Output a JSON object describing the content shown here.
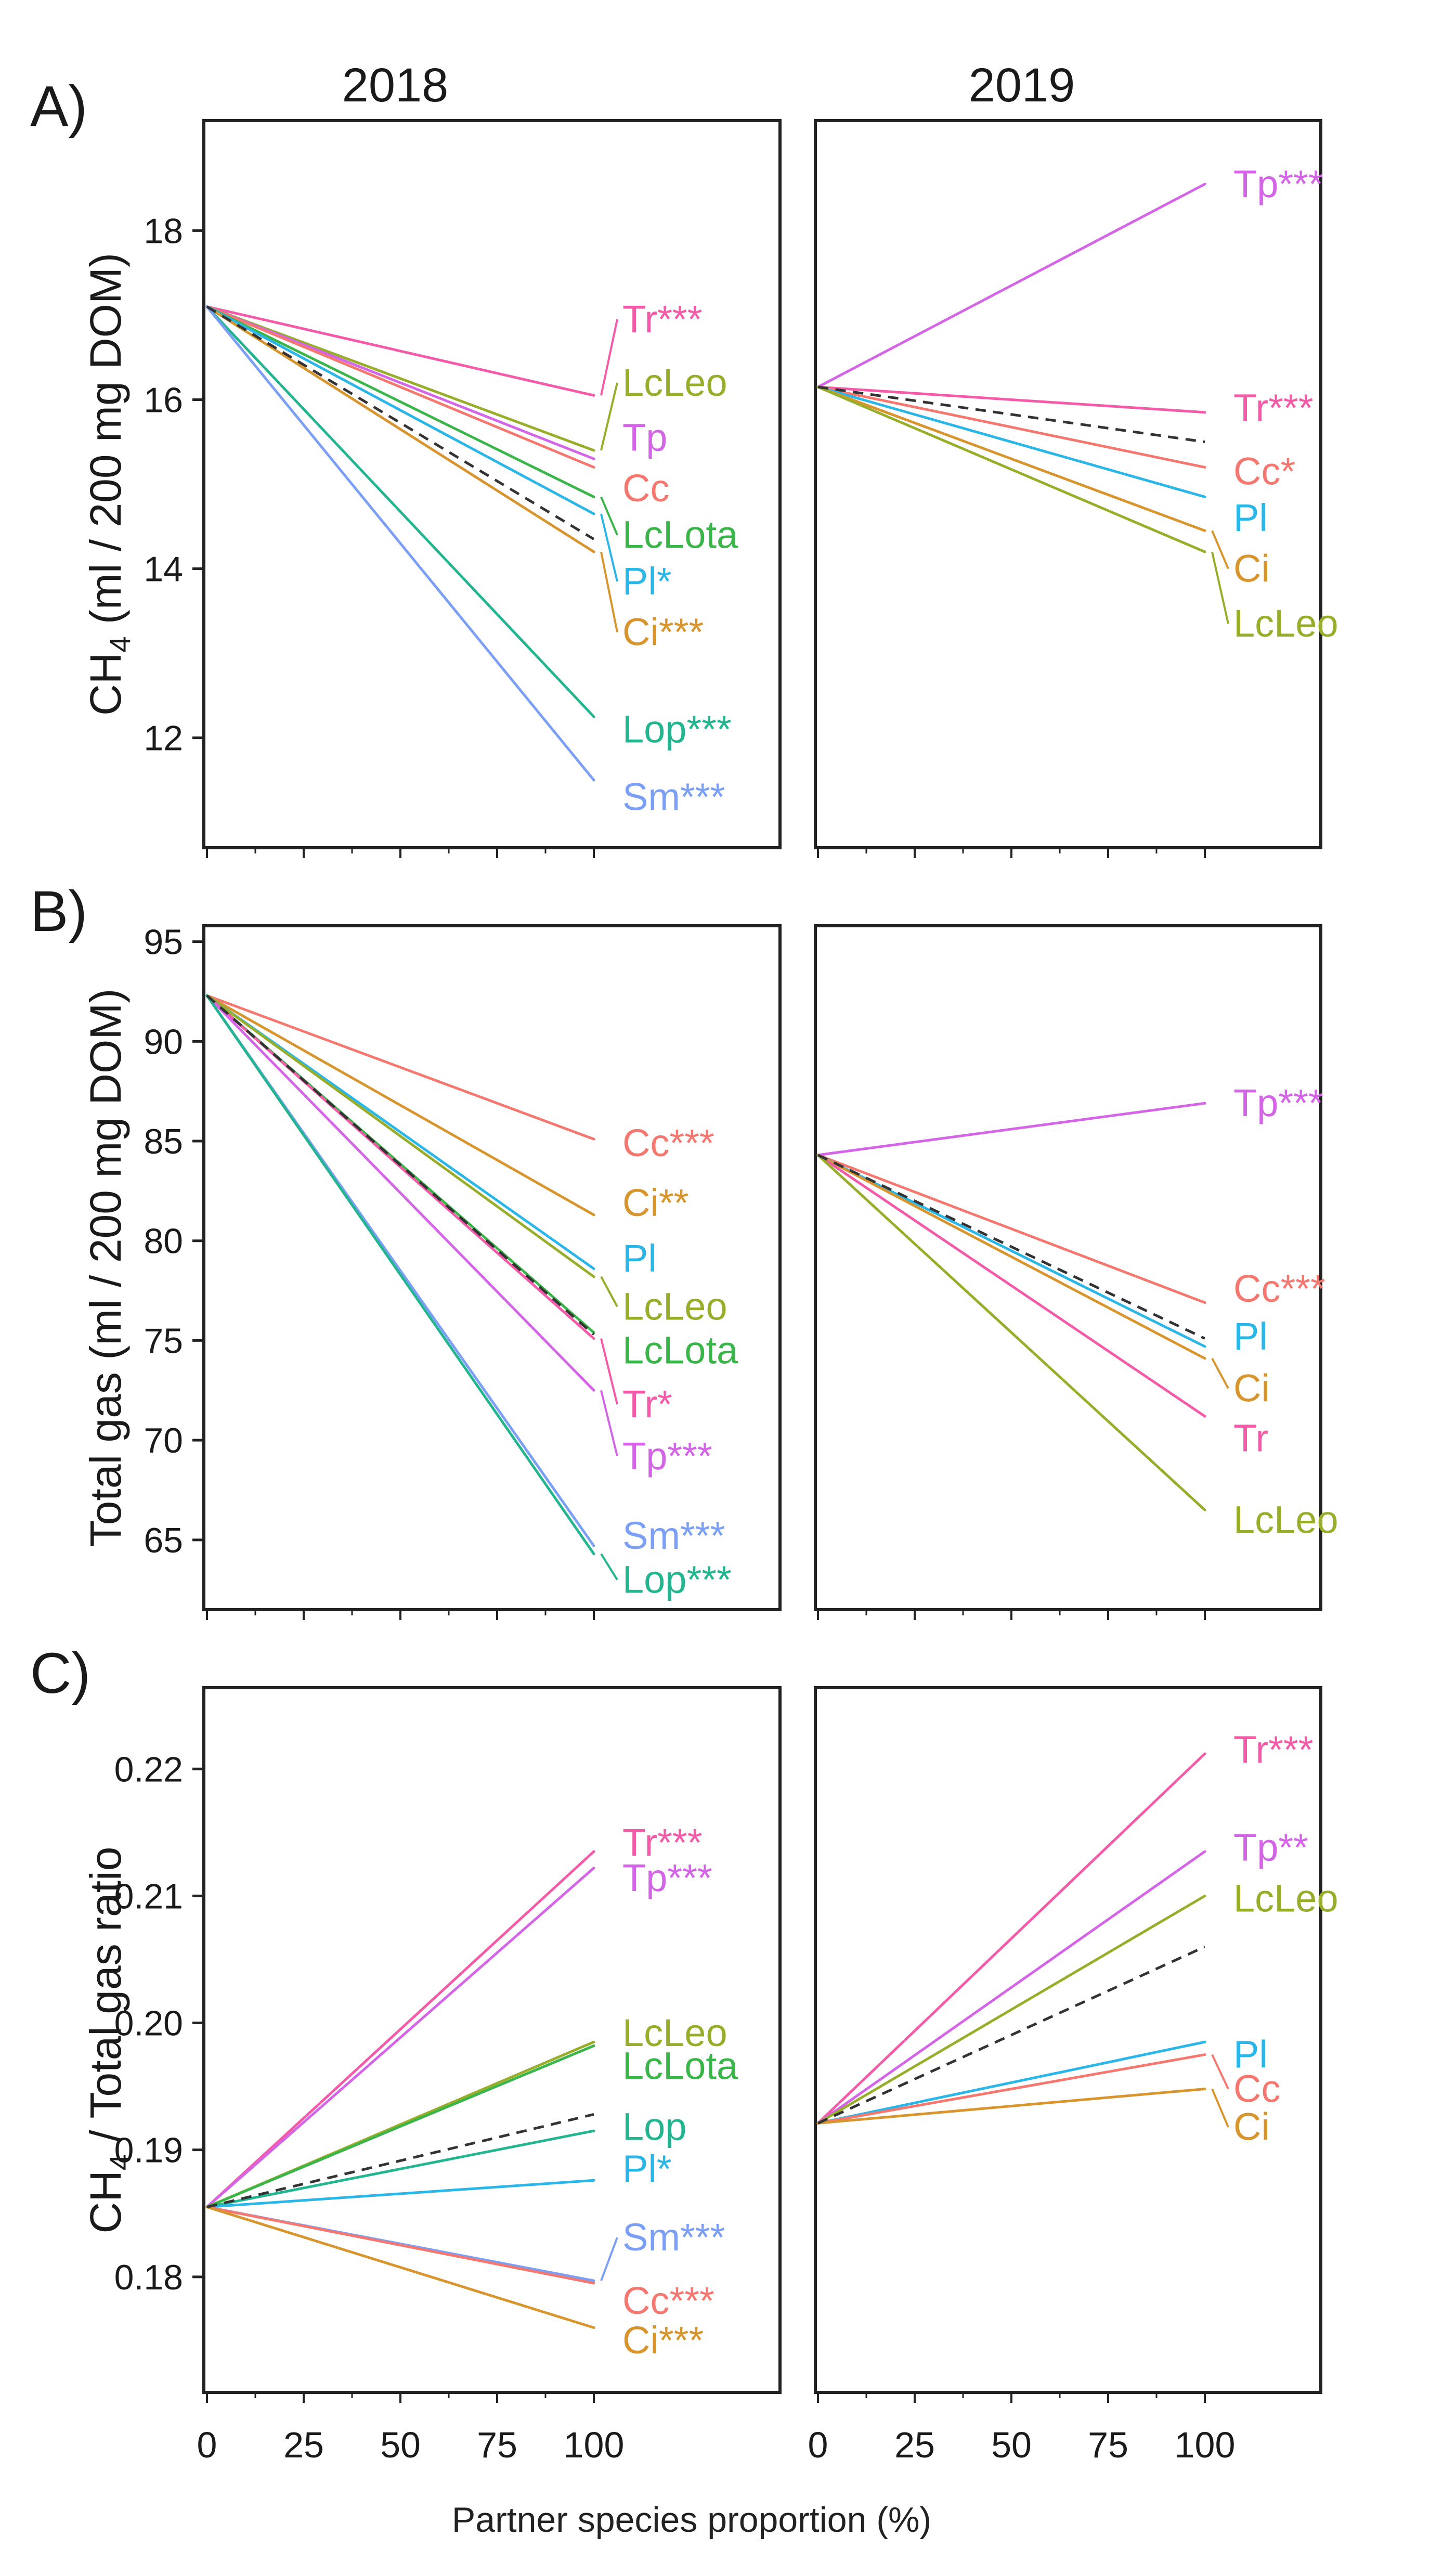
{
  "figure": {
    "x_axis_title": "Partner species proportion (%)",
    "year_labels": [
      "2018",
      "2019"
    ],
    "x_ticks": [
      0,
      25,
      50,
      75,
      100
    ]
  },
  "chart_data": [
    {
      "type": "line",
      "panel_label": "A)",
      "ylabel": "CH₄ (ml / 200 mg DOM)",
      "ylabel_main": "CH",
      "ylabel_sub": "4",
      "ylabel_rest": " (ml / 200 mg DOM)",
      "ylim": [
        10.7,
        19.3
      ],
      "yticks": [
        12,
        14,
        16,
        18
      ],
      "ytick_labels": [
        "12",
        "14",
        "16",
        "18"
      ],
      "xlim": [
        0,
        100
      ],
      "facets": [
        {
          "year": "2018",
          "start": 17.1,
          "reference_end": 14.35,
          "series": [
            {
              "name": "Tr***",
              "end": 16.05,
              "color": "#f35ba8",
              "label_y": 16.95
            },
            {
              "name": "LcLeo",
              "end": 15.4,
              "color": "#98ad2a",
              "label_y": 16.2
            },
            {
              "name": "Tp",
              "end": 15.3,
              "color": "#d465e6",
              "label_y": 15.55
            },
            {
              "name": "Cc",
              "end": 15.2,
              "color": "#f4786f",
              "label_y": 14.95
            },
            {
              "name": "LcLota",
              "end": 14.85,
              "color": "#3ab54a",
              "label_y": 14.4
            },
            {
              "name": "Pl*",
              "end": 14.65,
              "color": "#2bb6e8",
              "label_y": 13.85
            },
            {
              "name": "Ci***",
              "end": 14.2,
              "color": "#d9952d",
              "label_y": 13.25
            },
            {
              "name": "Lop***",
              "end": 12.25,
              "color": "#22b58f",
              "label_y": 12.1
            },
            {
              "name": "Sm***",
              "end": 11.5,
              "color": "#7b9ff4",
              "label_y": 11.3
            }
          ]
        },
        {
          "year": "2019",
          "start": 16.15,
          "reference_end": 15.5,
          "series": [
            {
              "name": "Tp***",
              "end": 18.55,
              "color": "#d465e6",
              "label_y": 18.55
            },
            {
              "name": "Tr***",
              "end": 15.85,
              "color": "#f35ba8",
              "label_y": 15.9
            },
            {
              "name": "Cc*",
              "end": 15.2,
              "color": "#f4786f",
              "label_y": 15.15
            },
            {
              "name": "Pl",
              "end": 14.85,
              "color": "#2bb6e8",
              "label_y": 14.6
            },
            {
              "name": "Ci",
              "end": 14.45,
              "color": "#d9952d",
              "label_y": 14.0
            },
            {
              "name": "LcLeo",
              "end": 14.2,
              "color": "#98ad2a",
              "label_y": 13.35
            }
          ]
        }
      ]
    },
    {
      "type": "line",
      "panel_label": "B)",
      "ylabel": "Total gas (ml / 200 mg DOM)",
      "ylim": [
        61.5,
        95.8
      ],
      "yticks": [
        65,
        70,
        75,
        80,
        85,
        90,
        95
      ],
      "ytick_labels": [
        "65",
        "70",
        "75",
        "80",
        "85",
        "90",
        "95"
      ],
      "xlim": [
        0,
        100
      ],
      "facets": [
        {
          "year": "2018",
          "start": 92.3,
          "reference_end": 75.3,
          "series": [
            {
              "name": "Cc***",
              "end": 85.1,
              "color": "#f4786f",
              "label_y": 84.9
            },
            {
              "name": "Ci**",
              "end": 81.3,
              "color": "#d9952d",
              "label_y": 81.9
            },
            {
              "name": "Pl",
              "end": 78.6,
              "color": "#2bb6e8",
              "label_y": 79.1
            },
            {
              "name": "LcLeo",
              "end": 78.2,
              "color": "#98ad2a",
              "label_y": 76.7
            },
            {
              "name": "LcLota",
              "end": 75.4,
              "color": "#3ab54a",
              "label_y": 74.5
            },
            {
              "name": "Tr*",
              "end": 75.1,
              "color": "#f35ba8",
              "label_y": 71.8
            },
            {
              "name": "Tp***",
              "end": 72.5,
              "color": "#d465e6",
              "label_y": 69.2
            },
            {
              "name": "Sm***",
              "end": 64.7,
              "color": "#7b9ff4",
              "label_y": 65.2
            },
            {
              "name": "Lop***",
              "end": 64.3,
              "color": "#22b58f",
              "label_y": 63.0
            }
          ]
        },
        {
          "year": "2019",
          "start": 84.3,
          "reference_end": 75.1,
          "series": [
            {
              "name": "Tp***",
              "end": 86.9,
              "color": "#d465e6",
              "label_y": 86.9
            },
            {
              "name": "Cc***",
              "end": 76.9,
              "color": "#f4786f",
              "label_y": 77.6
            },
            {
              "name": "Pl",
              "end": 74.7,
              "color": "#2bb6e8",
              "label_y": 75.2
            },
            {
              "name": "Ci",
              "end": 74.1,
              "color": "#d9952d",
              "label_y": 72.6
            },
            {
              "name": "Tr",
              "end": 71.2,
              "color": "#f35ba8",
              "label_y": 70.1
            },
            {
              "name": "LcLeo",
              "end": 66.5,
              "color": "#98ad2a",
              "label_y": 66.0
            }
          ]
        }
      ]
    },
    {
      "type": "line",
      "panel_label": "C)",
      "ylabel": "CH₄ / Total gas ratio",
      "ylabel_main": "CH",
      "ylabel_sub": "4",
      "ylabel_rest": " / Total gas ratio",
      "ylim": [
        0.1709,
        0.2264
      ],
      "yticks": [
        0.18,
        0.19,
        0.2,
        0.21,
        0.22
      ],
      "ytick_labels": [
        "0.18",
        "0.19",
        "0.20",
        "0.21",
        "0.22"
      ],
      "xlim": [
        0,
        100
      ],
      "facets": [
        {
          "year": "2018",
          "start": 0.1855,
          "reference_end": 0.1928,
          "series": [
            {
              "name": "Tr***",
              "end": 0.2135,
              "color": "#f35ba8",
              "label_y": 0.2142
            },
            {
              "name": "Tp***",
              "end": 0.2122,
              "color": "#d465e6",
              "label_y": 0.2114
            },
            {
              "name": "LcLeo",
              "end": 0.1985,
              "color": "#98ad2a",
              "label_y": 0.1992
            },
            {
              "name": "LcLota",
              "end": 0.1982,
              "color": "#3ab54a",
              "label_y": 0.1966
            },
            {
              "name": "Lop",
              "end": 0.1915,
              "color": "#22b58f",
              "label_y": 0.1918
            },
            {
              "name": "Pl*",
              "end": 0.1876,
              "color": "#2bb6e8",
              "label_y": 0.1885
            },
            {
              "name": "Sm***",
              "end": 0.1797,
              "color": "#7b9ff4",
              "label_y": 0.1831
            },
            {
              "name": "Cc***",
              "end": 0.1795,
              "color": "#f4786f",
              "label_y": 0.1781
            },
            {
              "name": "Ci***",
              "end": 0.176,
              "color": "#d9952d",
              "label_y": 0.175
            }
          ]
        },
        {
          "year": "2019",
          "start": 0.1921,
          "reference_end": 0.206,
          "series": [
            {
              "name": "Tr***",
              "end": 0.2212,
              "color": "#f35ba8",
              "label_y": 0.2215
            },
            {
              "name": "Tp**",
              "end": 0.2135,
              "color": "#d465e6",
              "label_y": 0.2138
            },
            {
              "name": "LcLeo",
              "end": 0.21,
              "color": "#98ad2a",
              "label_y": 0.2098
            },
            {
              "name": "Pl",
              "end": 0.1985,
              "color": "#2bb6e8",
              "label_y": 0.1975
            },
            {
              "name": "Cc",
              "end": 0.1975,
              "color": "#f4786f",
              "label_y": 0.1948
            },
            {
              "name": "Ci",
              "end": 0.1948,
              "color": "#d9952d",
              "label_y": 0.1918
            }
          ]
        }
      ]
    }
  ]
}
